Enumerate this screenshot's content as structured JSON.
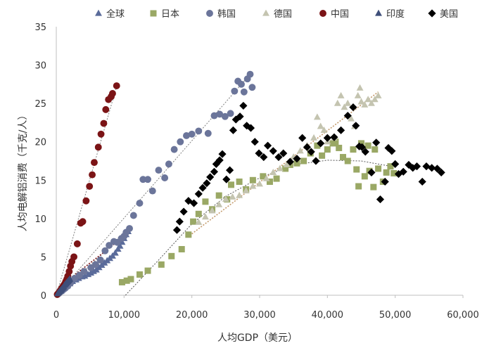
{
  "chart_data": {
    "type": "scatter",
    "title": "",
    "xlabel": "人均GDP（美元）",
    "ylabel": "人均电解铝消费（千克/人）",
    "xlim": [
      0,
      60000
    ],
    "ylim": [
      0,
      35
    ],
    "xticks": [
      0,
      10000,
      20000,
      30000,
      40000,
      50000,
      60000
    ],
    "xtick_labels": [
      "0",
      "10,000",
      "20,000",
      "30,000",
      "40,000",
      "50,000",
      "60,000"
    ],
    "yticks": [
      0,
      5,
      10,
      15,
      20,
      25,
      30,
      35
    ],
    "ytick_labels": [
      "0",
      "5",
      "10",
      "15",
      "20",
      "25",
      "30",
      "35"
    ],
    "grid": false,
    "legend_position": "top",
    "series": [
      {
        "name": "全球",
        "marker": "triangle",
        "color": "#5a6b9a",
        "points": [
          [
            700,
            0.5
          ],
          [
            1000,
            0.8
          ],
          [
            1300,
            1.0
          ],
          [
            1600,
            1.2
          ],
          [
            2000,
            1.5
          ],
          [
            2400,
            1.8
          ],
          [
            2900,
            2.0
          ],
          [
            3300,
            2.2
          ],
          [
            3800,
            2.4
          ],
          [
            4200,
            2.5
          ],
          [
            4700,
            2.7
          ],
          [
            5100,
            2.9
          ],
          [
            5500,
            3.1
          ],
          [
            5900,
            3.3
          ],
          [
            6300,
            3.6
          ],
          [
            6700,
            3.9
          ],
          [
            7100,
            4.2
          ],
          [
            7500,
            4.5
          ],
          [
            7900,
            4.8
          ],
          [
            8300,
            5.1
          ],
          [
            8700,
            5.5
          ],
          [
            9100,
            6.0
          ],
          [
            9400,
            6.4
          ],
          [
            9700,
            6.9
          ],
          [
            10000,
            7.4
          ],
          [
            10300,
            7.9
          ],
          [
            10600,
            8.3
          ]
        ]
      },
      {
        "name": "日本",
        "marker": "square",
        "color": "#9aa865",
        "points": [
          [
            9700,
            1.7
          ],
          [
            10400,
            1.9
          ],
          [
            11000,
            2.1
          ],
          [
            12300,
            2.7
          ],
          [
            13500,
            3.2
          ],
          [
            15500,
            4.0
          ],
          [
            17000,
            5.1
          ],
          [
            18500,
            6.0
          ],
          [
            19500,
            7.9
          ],
          [
            20200,
            9.6
          ],
          [
            21000,
            10.6
          ],
          [
            22000,
            12.2
          ],
          [
            23000,
            11.2
          ],
          [
            24000,
            13.0
          ],
          [
            25200,
            12.5
          ],
          [
            25800,
            14.4
          ],
          [
            27000,
            14.8
          ],
          [
            28000,
            13.8
          ],
          [
            29000,
            15.0
          ],
          [
            30500,
            15.5
          ],
          [
            31500,
            14.8
          ],
          [
            32500,
            15.2
          ],
          [
            33800,
            16.5
          ],
          [
            34500,
            17.0
          ],
          [
            35500,
            17.2
          ],
          [
            36500,
            17.5
          ],
          [
            37500,
            18.5
          ],
          [
            38500,
            19.5
          ],
          [
            39200,
            18.2
          ],
          [
            40000,
            19.0
          ],
          [
            40800,
            19.8
          ],
          [
            41200,
            20.0
          ],
          [
            41700,
            19.2
          ],
          [
            42300,
            18.0
          ],
          [
            43000,
            17.5
          ],
          [
            43800,
            19.0
          ],
          [
            44300,
            16.4
          ],
          [
            44600,
            14.2
          ],
          [
            45500,
            15.5
          ],
          [
            46200,
            16.2
          ],
          [
            46800,
            14.1
          ],
          [
            47500,
            16.5
          ],
          [
            48200,
            14.8
          ],
          [
            48700,
            16.0
          ],
          [
            49300,
            16.8
          ],
          [
            49800,
            15.9
          ],
          [
            47000,
            19.0
          ],
          [
            45000,
            19.8
          ],
          [
            46000,
            19.5
          ]
        ]
      },
      {
        "name": "韩国",
        "marker": "circle",
        "color": "#6b759a",
        "points": [
          [
            400,
            0.3
          ],
          [
            700,
            0.5
          ],
          [
            1000,
            0.7
          ],
          [
            1300,
            0.9
          ],
          [
            1700,
            1.2
          ],
          [
            2100,
            1.6
          ],
          [
            2700,
            2.2
          ],
          [
            3400,
            2.6
          ],
          [
            4100,
            3.1
          ],
          [
            5100,
            3.6
          ],
          [
            5800,
            4.0
          ],
          [
            6500,
            4.6
          ],
          [
            7200,
            5.8
          ],
          [
            7800,
            6.5
          ],
          [
            8500,
            7.0
          ],
          [
            9000,
            6.9
          ],
          [
            9600,
            7.4
          ],
          [
            10000,
            7.7
          ],
          [
            10300,
            8.2
          ],
          [
            10800,
            8.7
          ],
          [
            11400,
            10.4
          ],
          [
            12300,
            12.0
          ],
          [
            12800,
            15.1
          ],
          [
            13500,
            15.1
          ],
          [
            14200,
            13.6
          ],
          [
            15100,
            16.3
          ],
          [
            16000,
            15.3
          ],
          [
            16600,
            17.1
          ],
          [
            17400,
            19.0
          ],
          [
            18300,
            20.0
          ],
          [
            19200,
            20.8
          ],
          [
            20000,
            21.0
          ],
          [
            21000,
            21.4
          ],
          [
            22400,
            21.1
          ],
          [
            23300,
            23.4
          ],
          [
            24100,
            23.6
          ],
          [
            24900,
            23.3
          ],
          [
            25700,
            23.7
          ],
          [
            26300,
            26.6
          ],
          [
            26800,
            27.9
          ],
          [
            27300,
            27.5
          ],
          [
            27700,
            26.5
          ],
          [
            28200,
            28.2
          ],
          [
            28600,
            28.8
          ],
          [
            28900,
            27.1
          ]
        ]
      },
      {
        "name": "德国",
        "marker": "triangle",
        "color": "#c4c4b0",
        "points": [
          [
            21000,
            9.5
          ],
          [
            22000,
            10.2
          ],
          [
            23000,
            11.0
          ],
          [
            24000,
            11.8
          ],
          [
            25000,
            12.5
          ],
          [
            26000,
            12.8
          ],
          [
            27000,
            13.0
          ],
          [
            28000,
            13.6
          ],
          [
            29000,
            14.2
          ],
          [
            30000,
            14.5
          ],
          [
            31000,
            15.2
          ],
          [
            32000,
            16.0
          ],
          [
            33000,
            16.5
          ],
          [
            34000,
            17.0
          ],
          [
            35000,
            18.0
          ],
          [
            36000,
            18.8
          ],
          [
            37000,
            19.5
          ],
          [
            38000,
            20.5
          ],
          [
            38500,
            23.2
          ],
          [
            39000,
            22.0
          ],
          [
            39500,
            21.5
          ],
          [
            40000,
            20.0
          ],
          [
            41000,
            20.5
          ],
          [
            41500,
            25.0
          ],
          [
            42000,
            26.0
          ],
          [
            42500,
            24.5
          ],
          [
            43000,
            25.0
          ],
          [
            43500,
            23.0
          ],
          [
            44000,
            22.0
          ],
          [
            44500,
            26.0
          ],
          [
            45000,
            25.2
          ],
          [
            45500,
            24.8
          ],
          [
            46000,
            25.5
          ],
          [
            46500,
            25.0
          ],
          [
            47000,
            25.5
          ],
          [
            47500,
            26.0
          ],
          [
            44800,
            27.0
          ]
        ]
      },
      {
        "name": "中国",
        "marker": "circle",
        "color": "#7b1416",
        "points": [
          [
            150,
            0.1
          ],
          [
            250,
            0.2
          ],
          [
            350,
            0.3
          ],
          [
            500,
            0.5
          ],
          [
            650,
            0.7
          ],
          [
            800,
            0.9
          ],
          [
            950,
            1.1
          ],
          [
            1100,
            1.3
          ],
          [
            1250,
            1.5
          ],
          [
            1400,
            1.8
          ],
          [
            1550,
            2.1
          ],
          [
            1700,
            2.5
          ],
          [
            1900,
            3.1
          ],
          [
            2100,
            3.8
          ],
          [
            2300,
            4.4
          ],
          [
            2600,
            5.0
          ],
          [
            3100,
            6.7
          ],
          [
            3600,
            9.4
          ],
          [
            3900,
            9.6
          ],
          [
            4400,
            12.3
          ],
          [
            4900,
            14.2
          ],
          [
            5300,
            15.7
          ],
          [
            5600,
            17.3
          ],
          [
            6200,
            19.3
          ],
          [
            6600,
            21.0
          ],
          [
            7000,
            22.4
          ],
          [
            7300,
            24.2
          ],
          [
            7700,
            25.5
          ],
          [
            8100,
            25.9
          ],
          [
            8300,
            26.3
          ],
          [
            8900,
            27.3
          ]
        ]
      },
      {
        "name": "印度",
        "marker": "triangle",
        "color": "#3f4f7a",
        "points": [
          [
            200,
            0.2
          ],
          [
            300,
            0.3
          ],
          [
            400,
            0.4
          ],
          [
            500,
            0.5
          ],
          [
            600,
            0.6
          ],
          [
            700,
            0.7
          ],
          [
            800,
            0.8
          ],
          [
            900,
            0.9
          ],
          [
            1000,
            1.0
          ],
          [
            1100,
            1.1
          ],
          [
            1200,
            1.3
          ],
          [
            1300,
            1.4
          ],
          [
            1400,
            1.5
          ],
          [
            1500,
            1.6
          ],
          [
            1600,
            1.7
          ],
          [
            1700,
            1.8
          ],
          [
            1800,
            1.9
          ],
          [
            1900,
            2.0
          ],
          [
            2000,
            2.1
          ]
        ]
      },
      {
        "name": "美国",
        "marker": "diamond",
        "color": "#000000",
        "points": [
          [
            17800,
            8.5
          ],
          [
            18200,
            9.6
          ],
          [
            18800,
            10.9
          ],
          [
            19500,
            12.3
          ],
          [
            20300,
            12.0
          ],
          [
            21000,
            13.2
          ],
          [
            21600,
            14.0
          ],
          [
            22200,
            14.6
          ],
          [
            22700,
            15.4
          ],
          [
            23300,
            16.1
          ],
          [
            23600,
            17.1
          ],
          [
            24100,
            17.6
          ],
          [
            24500,
            18.4
          ],
          [
            25100,
            15.1
          ],
          [
            25600,
            16.3
          ],
          [
            26100,
            21.5
          ],
          [
            26500,
            22.9
          ],
          [
            27100,
            23.3
          ],
          [
            27600,
            24.7
          ],
          [
            28100,
            22.1
          ],
          [
            28700,
            21.8
          ],
          [
            29300,
            20.0
          ],
          [
            29900,
            18.5
          ],
          [
            30600,
            18.0
          ],
          [
            31200,
            19.5
          ],
          [
            32000,
            18.8
          ],
          [
            32800,
            18.0
          ],
          [
            33500,
            18.5
          ],
          [
            34500,
            17.4
          ],
          [
            35500,
            17.8
          ],
          [
            36300,
            20.5
          ],
          [
            37000,
            19.3
          ],
          [
            37600,
            18.7
          ],
          [
            38300,
            17.5
          ],
          [
            39000,
            19.8
          ],
          [
            40000,
            20.5
          ],
          [
            41000,
            20.6
          ],
          [
            42000,
            21.5
          ],
          [
            43000,
            23.4
          ],
          [
            43800,
            24.5
          ],
          [
            44200,
            22.1
          ],
          [
            44700,
            19.4
          ],
          [
            45100,
            19.3
          ],
          [
            45600,
            18.7
          ],
          [
            46500,
            16.0
          ],
          [
            47200,
            19.9
          ],
          [
            47800,
            12.5
          ],
          [
            48500,
            14.8
          ],
          [
            49000,
            19.2
          ],
          [
            49500,
            18.8
          ],
          [
            50000,
            17.1
          ],
          [
            50500,
            15.8
          ],
          [
            51200,
            16.1
          ],
          [
            52000,
            17.0
          ],
          [
            52600,
            16.6
          ],
          [
            53200,
            16.8
          ],
          [
            54000,
            14.8
          ],
          [
            54600,
            16.8
          ],
          [
            55400,
            16.6
          ],
          [
            56200,
            16.5
          ],
          [
            56800,
            16.0
          ]
        ]
      }
    ],
    "trendlines": [
      {
        "name": "全球",
        "color": "#7f7f7f",
        "x1": 0,
        "y1": 0,
        "x2": 10800,
        "y2": 8.5
      },
      {
        "name": "韩国",
        "color": "#7f7f7f",
        "x1": 0,
        "y1": 0,
        "x2": 28800,
        "y2": 29.0
      },
      {
        "name": "中国",
        "color": "#7f7f7f",
        "x1": 0,
        "y1": 0,
        "x2": 9000,
        "y2": 27.5
      },
      {
        "name": "德国",
        "color": "#c49a6c",
        "x1": 20000,
        "y1": 8.0,
        "x2": 47500,
        "y2": 26.5
      },
      {
        "name": "印度",
        "color": "#7b1416",
        "x1": 2500,
        "y1": 2.5,
        "x2": 10800,
        "y2": 8.2
      }
    ],
    "curves": [
      {
        "name": "美国",
        "color": "#555555",
        "points": [
          [
            10200,
            0
          ],
          [
            15000,
            4.5
          ],
          [
            20000,
            9.3
          ],
          [
            25000,
            12.9
          ],
          [
            30000,
            15.3
          ],
          [
            35000,
            17.0
          ],
          [
            40000,
            17.6
          ],
          [
            45000,
            17.5
          ],
          [
            50000,
            16.7
          ]
        ]
      }
    ]
  }
}
